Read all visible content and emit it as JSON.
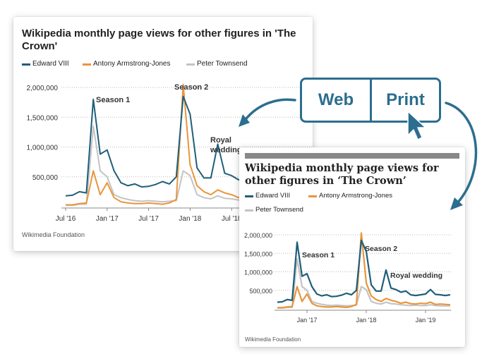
{
  "toggle": {
    "web_label": "Web",
    "print_label": "Print"
  },
  "colors": {
    "edward": "#1f5f7a",
    "antony": "#e8963c",
    "peter": "#c4c4c4",
    "accent": "#2c6e8f"
  },
  "web": {
    "title": "Wikipedia monthly page views for other figures in 'The Crown'",
    "source": "Wikimedia Foundation",
    "annotations": [
      "Season 1",
      "Season 2",
      "Royal",
      "wedding"
    ]
  },
  "print": {
    "title": "Wikipedia monthly page views for other figures in ‘The Crown’",
    "source": "Wikimedia Foundation",
    "annotations": [
      "Season 1",
      "Season 2",
      "Royal wedding"
    ]
  },
  "chart_data": {
    "type": "line",
    "x": [
      "2016-07",
      "2016-08",
      "2016-09",
      "2016-10",
      "2016-11",
      "2016-12",
      "2017-01",
      "2017-02",
      "2017-03",
      "2017-04",
      "2017-05",
      "2017-06",
      "2017-07",
      "2017-08",
      "2017-09",
      "2017-10",
      "2017-11",
      "2017-12",
      "2018-01",
      "2018-02",
      "2018-03",
      "2018-04",
      "2018-05",
      "2018-06",
      "2018-07",
      "2018-08",
      "2018-09",
      "2018-10",
      "2018-11",
      "2018-12",
      "2019-01",
      "2019-02",
      "2019-03",
      "2019-04",
      "2019-05",
      "2019-06",
      "2019-07"
    ],
    "series": [
      {
        "name": "Edward VIII",
        "values": [
          180000,
          190000,
          250000,
          230000,
          1800000,
          880000,
          950000,
          600000,
          400000,
          350000,
          380000,
          330000,
          340000,
          370000,
          420000,
          380000,
          500000,
          1850000,
          1550000,
          650000,
          480000,
          480000,
          1050000,
          560000,
          520000,
          450000,
          480000,
          380000,
          360000,
          380000,
          400000,
          520000,
          390000,
          380000,
          360000,
          380000,
          370000
        ]
      },
      {
        "name": "Antony Armstrong-Jones",
        "values": [
          30000,
          30000,
          50000,
          60000,
          600000,
          200000,
          400000,
          150000,
          80000,
          60000,
          50000,
          50000,
          60000,
          50000,
          40000,
          60000,
          120000,
          2050000,
          700000,
          350000,
          250000,
          200000,
          280000,
          230000,
          200000,
          150000,
          180000,
          140000,
          130000,
          150000,
          140000,
          180000,
          120000,
          130000,
          120000,
          110000,
          110000
        ]
      },
      {
        "name": "Peter Townsend",
        "values": [
          20000,
          20000,
          40000,
          40000,
          1350000,
          600000,
          500000,
          200000,
          150000,
          120000,
          100000,
          90000,
          100000,
          90000,
          80000,
          90000,
          100000,
          600000,
          520000,
          200000,
          150000,
          130000,
          180000,
          140000,
          130000,
          110000,
          100000,
          90000,
          100000,
          90000,
          90000,
          110000,
          90000,
          80000,
          80000,
          80000,
          80000
        ]
      }
    ],
    "web_ticks": {
      "y": [
        "2,000,000",
        "1,500,000",
        "1,000,000",
        "500,000"
      ],
      "x": [
        "Jul '16",
        "Jan '17",
        "Jul '17",
        "Jan '18",
        "Jul '18"
      ]
    },
    "print_ticks": {
      "y": [
        "2,000,000",
        "1,500,000",
        "1,000,000",
        "500,000"
      ],
      "x": [
        "Jan '17",
        "Jan '18",
        "Jan '19"
      ]
    },
    "ylim": [
      0,
      2000000
    ]
  }
}
